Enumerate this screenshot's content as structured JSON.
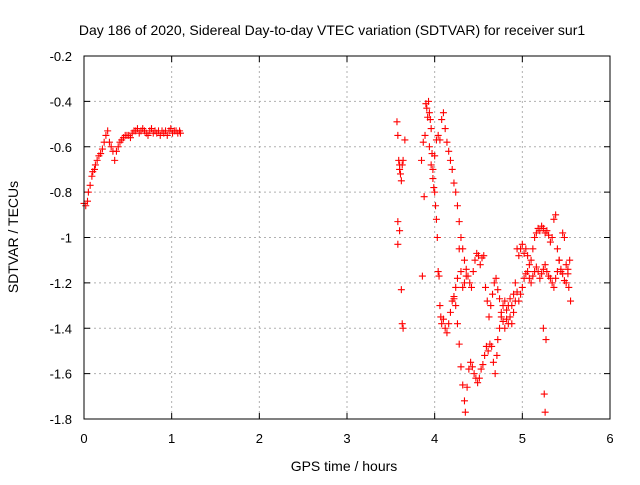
{
  "chart_data": {
    "type": "scatter",
    "title": "Day 186 of 2020, Sidereal Day-to-day VTEC variation (SDTVAR) for receiver sur1",
    "xlabel": "GPS time / hours",
    "ylabel": "SDTVAR / TECUs",
    "xlim": [
      0,
      6
    ],
    "ylim": [
      -1.8,
      -0.2
    ],
    "xticks": [
      0,
      1,
      2,
      3,
      4,
      5,
      6
    ],
    "xtick_labels": [
      "0",
      "1",
      "2",
      "3",
      "4",
      "5",
      "6"
    ],
    "yticks": [
      -0.2,
      -0.4,
      -0.6,
      -0.8,
      -1.0,
      -1.2,
      -1.4,
      -1.6,
      -1.8
    ],
    "ytick_labels": [
      "-0.2",
      "-0.4",
      "-0.6",
      "-0.8",
      "-1",
      "-1.2",
      "-1.4",
      "-1.6",
      "-1.8"
    ],
    "grid": true,
    "marker": "+",
    "marker_color": "#ff0000",
    "series": [
      {
        "name": "SDTVAR",
        "points": [
          [
            0.0,
            -0.85
          ],
          [
            0.02,
            -0.86
          ],
          [
            0.04,
            -0.84
          ],
          [
            0.05,
            -0.8
          ],
          [
            0.07,
            -0.77
          ],
          [
            0.09,
            -0.73
          ],
          [
            0.1,
            -0.71
          ],
          [
            0.12,
            -0.7
          ],
          [
            0.13,
            -0.68
          ],
          [
            0.15,
            -0.66
          ],
          [
            0.17,
            -0.64
          ],
          [
            0.19,
            -0.63
          ],
          [
            0.21,
            -0.61
          ],
          [
            0.23,
            -0.58
          ],
          [
            0.25,
            -0.55
          ],
          [
            0.27,
            -0.53
          ],
          [
            0.29,
            -0.58
          ],
          [
            0.31,
            -0.6
          ],
          [
            0.33,
            -0.62
          ],
          [
            0.35,
            -0.66
          ],
          [
            0.37,
            -0.62
          ],
          [
            0.39,
            -0.6
          ],
          [
            0.41,
            -0.58
          ],
          [
            0.43,
            -0.57
          ],
          [
            0.45,
            -0.56
          ],
          [
            0.47,
            -0.55
          ],
          [
            0.49,
            -0.55
          ],
          [
            0.51,
            -0.55
          ],
          [
            0.53,
            -0.56
          ],
          [
            0.55,
            -0.54
          ],
          [
            0.57,
            -0.53
          ],
          [
            0.59,
            -0.53
          ],
          [
            0.61,
            -0.52
          ],
          [
            0.63,
            -0.54
          ],
          [
            0.65,
            -0.53
          ],
          [
            0.67,
            -0.52
          ],
          [
            0.69,
            -0.53
          ],
          [
            0.71,
            -0.54
          ],
          [
            0.73,
            -0.55
          ],
          [
            0.75,
            -0.53
          ],
          [
            0.77,
            -0.52
          ],
          [
            0.79,
            -0.54
          ],
          [
            0.81,
            -0.53
          ],
          [
            0.83,
            -0.54
          ],
          [
            0.85,
            -0.53
          ],
          [
            0.87,
            -0.55
          ],
          [
            0.89,
            -0.53
          ],
          [
            0.91,
            -0.54
          ],
          [
            0.93,
            -0.53
          ],
          [
            0.95,
            -0.55
          ],
          [
            0.97,
            -0.53
          ],
          [
            0.99,
            -0.52
          ],
          [
            1.01,
            -0.54
          ],
          [
            1.03,
            -0.53
          ],
          [
            1.05,
            -0.53
          ],
          [
            1.07,
            -0.54
          ],
          [
            1.09,
            -0.53
          ],
          [
            1.1,
            -0.54
          ],
          [
            3.57,
            -0.49
          ],
          [
            3.58,
            -0.55
          ],
          [
            3.59,
            -0.66
          ],
          [
            3.6,
            -0.68
          ],
          [
            3.6,
            -0.7
          ],
          [
            3.61,
            -0.72
          ],
          [
            3.62,
            -0.75
          ],
          [
            3.63,
            -0.68
          ],
          [
            3.64,
            -0.66
          ],
          [
            3.58,
            -0.93
          ],
          [
            3.58,
            -1.03
          ],
          [
            3.6,
            -0.97
          ],
          [
            3.62,
            -1.23
          ],
          [
            3.63,
            -1.38
          ],
          [
            3.64,
            -1.4
          ],
          [
            3.66,
            -0.57
          ],
          [
            3.85,
            -0.66
          ],
          [
            3.86,
            -1.17
          ],
          [
            3.87,
            -0.58
          ],
          [
            3.88,
            -0.82
          ],
          [
            3.89,
            -0.55
          ],
          [
            3.9,
            -0.41
          ],
          [
            3.91,
            -0.43
          ],
          [
            3.92,
            -0.47
          ],
          [
            3.93,
            -0.4
          ],
          [
            3.94,
            -0.45
          ],
          [
            3.95,
            -0.48
          ],
          [
            3.96,
            -0.52
          ],
          [
            3.97,
            -0.63
          ],
          [
            3.98,
            -0.7
          ],
          [
            3.99,
            -0.78
          ],
          [
            4.0,
            -0.8
          ],
          [
            4.01,
            -0.86
          ],
          [
            4.02,
            -0.92
          ],
          [
            4.03,
            -1.0
          ],
          [
            4.04,
            -1.15
          ],
          [
            4.05,
            -1.17
          ],
          [
            4.06,
            -1.3
          ],
          [
            4.07,
            -1.35
          ],
          [
            4.08,
            -1.38
          ],
          [
            3.94,
            -0.6
          ],
          [
            3.96,
            -0.68
          ],
          [
            3.98,
            -0.74
          ],
          [
            4.0,
            -0.64
          ],
          [
            4.02,
            -0.57
          ],
          [
            4.04,
            -0.55
          ],
          [
            4.06,
            -0.57
          ],
          [
            4.08,
            -0.48
          ],
          [
            4.1,
            -0.45
          ],
          [
            4.12,
            -0.52
          ],
          [
            4.14,
            -0.58
          ],
          [
            4.16,
            -0.62
          ],
          [
            4.18,
            -0.66
          ],
          [
            4.2,
            -0.7
          ],
          [
            4.22,
            -0.76
          ],
          [
            4.24,
            -0.8
          ],
          [
            4.26,
            -0.86
          ],
          [
            4.28,
            -0.93
          ],
          [
            4.3,
            -1.0
          ],
          [
            4.32,
            -1.05
          ],
          [
            4.34,
            -1.1
          ],
          [
            4.36,
            -1.14
          ],
          [
            4.38,
            -1.17
          ],
          [
            4.4,
            -1.2
          ],
          [
            4.42,
            -1.22
          ],
          [
            4.44,
            -1.15
          ],
          [
            4.46,
            -1.1
          ],
          [
            4.48,
            -1.07
          ],
          [
            4.5,
            -1.08
          ],
          [
            4.52,
            -1.12
          ],
          [
            4.54,
            -1.09
          ],
          [
            4.56,
            -1.08
          ],
          [
            4.1,
            -1.36
          ],
          [
            4.12,
            -1.4
          ],
          [
            4.14,
            -1.42
          ],
          [
            4.16,
            -1.38
          ],
          [
            4.18,
            -1.33
          ],
          [
            4.2,
            -1.28
          ],
          [
            4.22,
            -1.26
          ],
          [
            4.24,
            -1.3
          ],
          [
            4.26,
            -1.38
          ],
          [
            4.28,
            -1.47
          ],
          [
            4.3,
            -1.57
          ],
          [
            4.32,
            -1.65
          ],
          [
            4.34,
            -1.72
          ],
          [
            4.35,
            -1.77
          ],
          [
            4.37,
            -1.66
          ],
          [
            4.39,
            -1.58
          ],
          [
            4.41,
            -1.55
          ],
          [
            4.43,
            -1.57
          ],
          [
            4.45,
            -1.6
          ],
          [
            4.47,
            -1.62
          ],
          [
            4.49,
            -1.64
          ],
          [
            4.51,
            -1.62
          ],
          [
            4.53,
            -1.58
          ],
          [
            4.55,
            -1.56
          ],
          [
            4.57,
            -1.52
          ],
          [
            4.59,
            -1.48
          ],
          [
            4.61,
            -1.5
          ],
          [
            4.63,
            -1.47
          ],
          [
            4.65,
            -1.48
          ],
          [
            4.67,
            -1.55
          ],
          [
            4.69,
            -1.6
          ],
          [
            4.71,
            -1.52
          ],
          [
            4.58,
            -1.22
          ],
          [
            4.6,
            -1.28
          ],
          [
            4.62,
            -1.35
          ],
          [
            4.64,
            -1.3
          ],
          [
            4.66,
            -1.25
          ],
          [
            4.68,
            -1.2
          ],
          [
            4.7,
            -1.18
          ],
          [
            4.72,
            -1.23
          ],
          [
            4.74,
            -1.27
          ],
          [
            4.76,
            -1.33
          ],
          [
            4.78,
            -1.37
          ],
          [
            4.8,
            -1.4
          ],
          [
            4.82,
            -1.36
          ],
          [
            4.84,
            -1.38
          ],
          [
            4.86,
            -1.35
          ],
          [
            4.88,
            -1.38
          ],
          [
            4.9,
            -1.33
          ],
          [
            4.92,
            -1.28
          ],
          [
            4.94,
            -1.05
          ],
          [
            4.96,
            -1.08
          ],
          [
            4.98,
            -1.05
          ],
          [
            5.0,
            -1.03
          ],
          [
            5.02,
            -1.07
          ],
          [
            5.04,
            -1.05
          ],
          [
            5.06,
            -1.08
          ],
          [
            5.08,
            -1.12
          ],
          [
            5.1,
            -1.1
          ],
          [
            5.12,
            -1.05
          ],
          [
            5.14,
            -1.0
          ],
          [
            5.16,
            -0.98
          ],
          [
            5.18,
            -0.96
          ],
          [
            5.2,
            -0.97
          ],
          [
            5.22,
            -0.95
          ],
          [
            5.24,
            -0.96
          ],
          [
            5.26,
            -0.98
          ],
          [
            5.28,
            -0.97
          ],
          [
            5.3,
            -0.99
          ],
          [
            5.32,
            -1.02
          ],
          [
            5.34,
            -1.0
          ],
          [
            5.36,
            -0.92
          ],
          [
            5.38,
            -0.9
          ],
          [
            5.4,
            -1.05
          ],
          [
            5.42,
            -1.1
          ],
          [
            5.44,
            -1.15
          ],
          [
            5.46,
            -0.98
          ],
          [
            5.48,
            -1.0
          ],
          [
            5.5,
            -1.12
          ],
          [
            5.52,
            -1.14
          ],
          [
            4.72,
            -1.45
          ],
          [
            4.74,
            -1.4
          ],
          [
            4.76,
            -1.35
          ],
          [
            4.78,
            -1.3
          ],
          [
            4.8,
            -1.28
          ],
          [
            4.82,
            -1.32
          ],
          [
            4.84,
            -1.3
          ],
          [
            4.86,
            -1.27
          ],
          [
            4.88,
            -1.3
          ],
          [
            4.9,
            -1.25
          ],
          [
            4.92,
            -1.2
          ],
          [
            4.94,
            -1.24
          ],
          [
            4.96,
            -1.28
          ],
          [
            4.98,
            -1.25
          ],
          [
            5.0,
            -1.22
          ],
          [
            5.02,
            -1.18
          ],
          [
            5.04,
            -1.16
          ],
          [
            5.06,
            -1.15
          ],
          [
            5.08,
            -1.18
          ],
          [
            5.1,
            -1.2
          ],
          [
            5.12,
            -1.17
          ],
          [
            5.14,
            -1.15
          ],
          [
            5.16,
            -1.13
          ],
          [
            5.18,
            -1.15
          ],
          [
            5.2,
            -1.18
          ],
          [
            5.22,
            -1.16
          ],
          [
            5.24,
            -1.14
          ],
          [
            5.26,
            -1.12
          ],
          [
            5.28,
            -1.15
          ],
          [
            5.3,
            -1.17
          ],
          [
            5.32,
            -1.18
          ],
          [
            5.34,
            -1.2
          ],
          [
            5.36,
            -1.22
          ],
          [
            5.38,
            -1.18
          ],
          [
            5.4,
            -1.15
          ],
          [
            5.42,
            -1.1
          ],
          [
            5.44,
            -1.14
          ],
          [
            5.46,
            -1.16
          ],
          [
            5.48,
            -1.19
          ],
          [
            5.5,
            -1.2
          ],
          [
            5.52,
            -1.16
          ],
          [
            5.54,
            -1.1
          ],
          [
            5.55,
            -1.28
          ],
          [
            5.53,
            -1.22
          ],
          [
            5.25,
            -1.69
          ],
          [
            5.26,
            -1.77
          ],
          [
            5.27,
            -1.45
          ],
          [
            5.24,
            -1.4
          ],
          [
            4.22,
            -1.27
          ],
          [
            4.24,
            -1.22
          ],
          [
            4.26,
            -1.18
          ],
          [
            4.28,
            -1.05
          ],
          [
            4.3,
            -1.15
          ],
          [
            4.32,
            -1.22
          ],
          [
            4.34,
            -1.2
          ],
          [
            4.36,
            -1.17
          ]
        ]
      }
    ]
  }
}
